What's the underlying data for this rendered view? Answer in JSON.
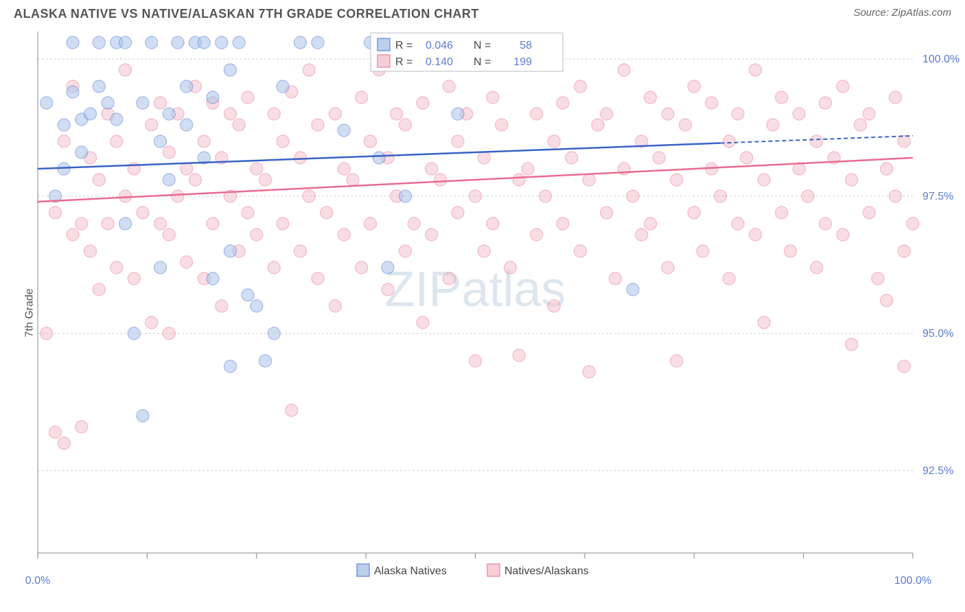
{
  "header": {
    "title": "ALASKA NATIVE VS NATIVE/ALASKAN 7TH GRADE CORRELATION CHART",
    "source": "Source: ZipAtlas.com"
  },
  "chart": {
    "type": "scatter",
    "ylabel": "7th Grade",
    "watermark_plain": "ZIP",
    "watermark_bold": "atlas",
    "background_color": "#ffffff",
    "grid_color": "#cccccc",
    "axis_color": "#888888",
    "tick_label_color": "#5b7bd5",
    "xlim": [
      0,
      100
    ],
    "ylim": [
      91.0,
      100.5
    ],
    "y_ticks": [
      92.5,
      95.0,
      97.5,
      100.0
    ],
    "y_tick_labels": [
      "92.5%",
      "95.0%",
      "97.5%",
      "100.0%"
    ],
    "x_ticks": [
      0,
      12.5,
      25,
      37.5,
      50,
      62.5,
      75,
      87.5,
      100
    ],
    "x_tick_labels_shown": {
      "0": "0.0%",
      "100": "100.0%"
    },
    "marker_radius": 9,
    "series": [
      {
        "name": "Alaska Natives",
        "color_fill": "#a8c4e8",
        "color_stroke": "#5b7bd5",
        "R": "0.046",
        "N": "58",
        "trend": {
          "y_at_x0": 98.0,
          "y_at_x100": 98.6,
          "solid_until_x": 78
        },
        "points": [
          [
            1,
            99.2
          ],
          [
            2,
            97.5
          ],
          [
            3,
            98.0
          ],
          [
            3,
            98.8
          ],
          [
            4,
            100.3
          ],
          [
            4,
            99.4
          ],
          [
            5,
            98.9
          ],
          [
            5,
            98.3
          ],
          [
            6,
            99.0
          ],
          [
            7,
            100.3
          ],
          [
            7,
            99.5
          ],
          [
            8,
            99.2
          ],
          [
            9,
            100.3
          ],
          [
            9,
            98.9
          ],
          [
            10,
            97.0
          ],
          [
            10,
            100.3
          ],
          [
            11,
            95.0
          ],
          [
            12,
            93.5
          ],
          [
            12,
            99.2
          ],
          [
            13,
            100.3
          ],
          [
            14,
            98.5
          ],
          [
            14,
            96.2
          ],
          [
            15,
            99.0
          ],
          [
            15,
            97.8
          ],
          [
            16,
            100.3
          ],
          [
            17,
            98.8
          ],
          [
            17,
            99.5
          ],
          [
            18,
            100.3
          ],
          [
            19,
            98.2
          ],
          [
            19,
            100.3
          ],
          [
            20,
            99.3
          ],
          [
            20,
            96.0
          ],
          [
            21,
            100.3
          ],
          [
            22,
            99.8
          ],
          [
            22,
            96.5
          ],
          [
            22,
            94.4
          ],
          [
            23,
            100.3
          ],
          [
            24,
            95.7
          ],
          [
            25,
            95.5
          ],
          [
            26,
            94.5
          ],
          [
            27,
            95.0
          ],
          [
            28,
            99.5
          ],
          [
            30,
            100.3
          ],
          [
            32,
            100.3
          ],
          [
            35,
            98.7
          ],
          [
            38,
            100.3
          ],
          [
            39,
            98.2
          ],
          [
            40,
            96.2
          ],
          [
            42,
            97.5
          ],
          [
            43,
            100.3
          ],
          [
            45,
            100.3
          ],
          [
            48,
            99.0
          ],
          [
            50,
            100.3
          ],
          [
            68,
            95.8
          ]
        ]
      },
      {
        "name": "Natives/Alaskans",
        "color_fill": "#f5c2ce",
        "color_stroke": "#e87b9a",
        "R": "0.140",
        "N": "199",
        "trend": {
          "y_at_x0": 97.4,
          "y_at_x100": 98.2,
          "solid_until_x": 100
        },
        "points": [
          [
            1,
            95.0
          ],
          [
            2,
            93.2
          ],
          [
            2,
            97.2
          ],
          [
            3,
            98.5
          ],
          [
            3,
            93.0
          ],
          [
            4,
            99.5
          ],
          [
            4,
            96.8
          ],
          [
            5,
            97.0
          ],
          [
            5,
            93.3
          ],
          [
            6,
            98.2
          ],
          [
            6,
            96.5
          ],
          [
            7,
            97.8
          ],
          [
            7,
            95.8
          ],
          [
            8,
            99.0
          ],
          [
            8,
            97.0
          ],
          [
            9,
            98.5
          ],
          [
            9,
            96.2
          ],
          [
            10,
            99.8
          ],
          [
            10,
            97.5
          ],
          [
            11,
            98.0
          ],
          [
            11,
            96.0
          ],
          [
            12,
            97.2
          ],
          [
            13,
            98.8
          ],
          [
            13,
            95.2
          ],
          [
            14,
            99.2
          ],
          [
            14,
            97.0
          ],
          [
            15,
            98.3
          ],
          [
            15,
            96.8
          ],
          [
            15,
            95.0
          ],
          [
            16,
            97.5
          ],
          [
            16,
            99.0
          ],
          [
            17,
            98.0
          ],
          [
            17,
            96.3
          ],
          [
            18,
            99.5
          ],
          [
            18,
            97.8
          ],
          [
            19,
            98.5
          ],
          [
            19,
            96.0
          ],
          [
            20,
            97.0
          ],
          [
            20,
            99.2
          ],
          [
            21,
            98.2
          ],
          [
            21,
            95.5
          ],
          [
            22,
            97.5
          ],
          [
            22,
            99.0
          ],
          [
            23,
            98.8
          ],
          [
            23,
            96.5
          ],
          [
            24,
            97.2
          ],
          [
            24,
            99.3
          ],
          [
            25,
            98.0
          ],
          [
            25,
            96.8
          ],
          [
            26,
            97.8
          ],
          [
            27,
            99.0
          ],
          [
            27,
            96.2
          ],
          [
            28,
            98.5
          ],
          [
            28,
            97.0
          ],
          [
            29,
            93.6
          ],
          [
            29,
            99.4
          ],
          [
            30,
            98.2
          ],
          [
            30,
            96.5
          ],
          [
            31,
            97.5
          ],
          [
            31,
            99.8
          ],
          [
            32,
            98.8
          ],
          [
            32,
            96.0
          ],
          [
            33,
            97.2
          ],
          [
            34,
            99.0
          ],
          [
            34,
            95.5
          ],
          [
            35,
            98.0
          ],
          [
            35,
            96.8
          ],
          [
            36,
            97.8
          ],
          [
            37,
            99.3
          ],
          [
            37,
            96.2
          ],
          [
            38,
            98.5
          ],
          [
            38,
            97.0
          ],
          [
            39,
            99.8
          ],
          [
            40,
            98.2
          ],
          [
            40,
            95.8
          ],
          [
            41,
            97.5
          ],
          [
            41,
            99.0
          ],
          [
            42,
            98.8
          ],
          [
            42,
            96.5
          ],
          [
            43,
            97.0
          ],
          [
            44,
            99.2
          ],
          [
            44,
            95.2
          ],
          [
            45,
            98.0
          ],
          [
            45,
            96.8
          ],
          [
            46,
            97.8
          ],
          [
            47,
            99.5
          ],
          [
            47,
            96.0
          ],
          [
            48,
            98.5
          ],
          [
            48,
            97.2
          ],
          [
            49,
            99.0
          ],
          [
            50,
            97.5
          ],
          [
            50,
            94.5
          ],
          [
            51,
            98.2
          ],
          [
            51,
            96.5
          ],
          [
            52,
            99.3
          ],
          [
            52,
            97.0
          ],
          [
            53,
            98.8
          ],
          [
            54,
            96.2
          ],
          [
            54,
            99.9
          ],
          [
            55,
            97.8
          ],
          [
            55,
            94.6
          ],
          [
            56,
            98.0
          ],
          [
            57,
            99.0
          ],
          [
            57,
            96.8
          ],
          [
            58,
            97.5
          ],
          [
            59,
            98.5
          ],
          [
            59,
            95.5
          ],
          [
            60,
            99.2
          ],
          [
            60,
            97.0
          ],
          [
            61,
            98.2
          ],
          [
            62,
            96.5
          ],
          [
            62,
            99.5
          ],
          [
            63,
            97.8
          ],
          [
            63,
            94.3
          ],
          [
            64,
            98.8
          ],
          [
            65,
            97.2
          ],
          [
            65,
            99.0
          ],
          [
            66,
            96.0
          ],
          [
            67,
            98.0
          ],
          [
            67,
            99.8
          ],
          [
            68,
            97.5
          ],
          [
            69,
            98.5
          ],
          [
            69,
            96.8
          ],
          [
            70,
            99.3
          ],
          [
            70,
            97.0
          ],
          [
            71,
            98.2
          ],
          [
            72,
            96.2
          ],
          [
            72,
            99.0
          ],
          [
            73,
            97.8
          ],
          [
            73,
            94.5
          ],
          [
            74,
            98.8
          ],
          [
            75,
            97.2
          ],
          [
            75,
            99.5
          ],
          [
            76,
            96.5
          ],
          [
            77,
            98.0
          ],
          [
            77,
            99.2
          ],
          [
            78,
            97.5
          ],
          [
            79,
            98.5
          ],
          [
            79,
            96.0
          ],
          [
            80,
            99.0
          ],
          [
            80,
            97.0
          ],
          [
            81,
            98.2
          ],
          [
            82,
            96.8
          ],
          [
            82,
            99.8
          ],
          [
            83,
            97.8
          ],
          [
            83,
            95.2
          ],
          [
            84,
            98.8
          ],
          [
            85,
            97.2
          ],
          [
            85,
            99.3
          ],
          [
            86,
            96.5
          ],
          [
            87,
            98.0
          ],
          [
            87,
            99.0
          ],
          [
            88,
            97.5
          ],
          [
            89,
            98.5
          ],
          [
            89,
            96.2
          ],
          [
            90,
            99.2
          ],
          [
            90,
            97.0
          ],
          [
            91,
            98.2
          ],
          [
            92,
            96.8
          ],
          [
            92,
            99.5
          ],
          [
            93,
            97.8
          ],
          [
            93,
            94.8
          ],
          [
            94,
            98.8
          ],
          [
            95,
            97.2
          ],
          [
            95,
            99.0
          ],
          [
            96,
            96.0
          ],
          [
            97,
            98.0
          ],
          [
            97,
            95.6
          ],
          [
            98,
            99.3
          ],
          [
            98,
            97.5
          ],
          [
            99,
            98.5
          ],
          [
            99,
            96.5
          ],
          [
            99,
            94.4
          ],
          [
            100,
            97.0
          ]
        ]
      }
    ],
    "bottom_legend": [
      {
        "label": "Alaska Natives",
        "swatch": "blue"
      },
      {
        "label": "Natives/Alaskans",
        "swatch": "pink"
      }
    ]
  }
}
